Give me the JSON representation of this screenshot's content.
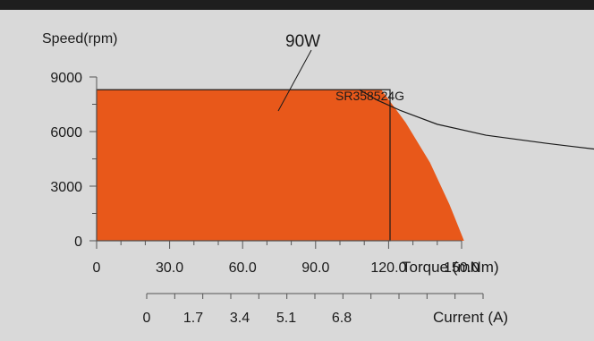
{
  "colors": {
    "background": "#d9d9d9",
    "top_bar": "#1e1e1e",
    "fill": "#e8581a",
    "curve": "#1a1a1a",
    "axis": "#555555"
  },
  "chart_data": {
    "type": "area",
    "speed_axis": {
      "label": "Speed(rpm)",
      "range": [
        0,
        9000
      ],
      "ticks": [
        0,
        3000,
        6000,
        9000
      ],
      "tick_labels": [
        "0",
        "3000",
        "6000",
        "9000"
      ]
    },
    "torque_axis": {
      "label": "Torque (mNm)",
      "range": [
        0,
        210
      ],
      "ticks": [
        0,
        30,
        60,
        90,
        120,
        150
      ],
      "tick_labels": [
        "0",
        "30.0",
        "60.0",
        "90.0",
        "120.0",
        "150.0"
      ]
    },
    "current_axis": {
      "label": "Current (A)",
      "ticks": [
        0,
        1.7,
        3.4,
        5.1,
        6.8
      ],
      "tick_labels": [
        "0",
        "1.7",
        "3.4",
        "5.1",
        "6.8"
      ]
    },
    "model_label": "SR358524G",
    "power_label": "90W",
    "operating_region": {
      "max_speed": 8300,
      "max_torque": 151,
      "boundary": [
        {
          "torque": 117,
          "speed": 8300
        },
        {
          "torque": 127,
          "speed": 6500
        },
        {
          "torque": 137,
          "speed": 4300
        },
        {
          "torque": 145,
          "speed": 2000
        },
        {
          "torque": 151,
          "speed": 0
        }
      ]
    },
    "power_curve": [
      {
        "torque": 108,
        "speed": 8300
      },
      {
        "torque": 115,
        "speed": 7750
      },
      {
        "torque": 125,
        "speed": 7150
      },
      {
        "torque": 140,
        "speed": 6400
      },
      {
        "torque": 160,
        "speed": 5800
      },
      {
        "torque": 185,
        "speed": 5350
      },
      {
        "torque": 210,
        "speed": 4950
      }
    ]
  }
}
